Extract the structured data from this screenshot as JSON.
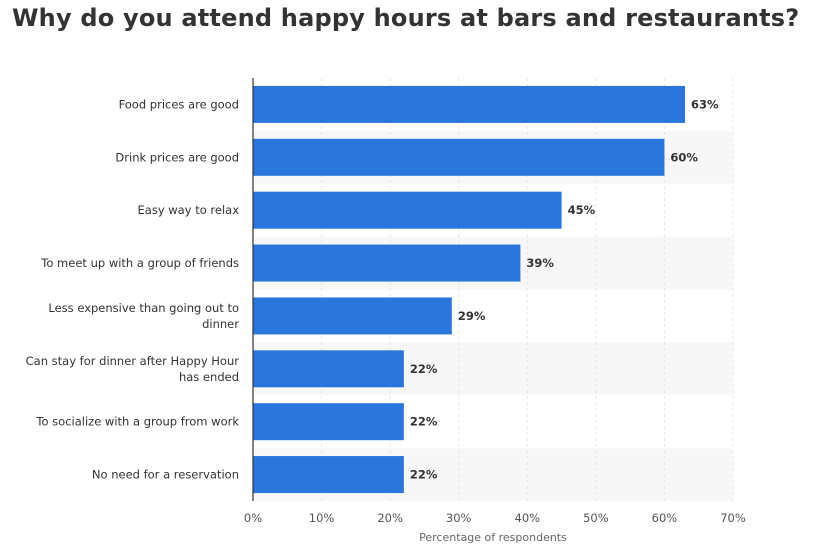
{
  "chart_data": {
    "type": "bar",
    "orientation": "horizontal",
    "title": "Why do you attend happy hours at bars and restaurants?",
    "categories": [
      [
        "Food prices are good"
      ],
      [
        "Drink prices are good"
      ],
      [
        "Easy way to relax"
      ],
      [
        "To meet up with a group of friends"
      ],
      [
        "Less expensive than going out to",
        "dinner"
      ],
      [
        "Can stay for dinner after Happy Hour",
        "has ended"
      ],
      [
        "To socialize with a group from work"
      ],
      [
        "No need for a reservation"
      ]
    ],
    "values": [
      63,
      60,
      45,
      39,
      29,
      22,
      22,
      22
    ],
    "value_labels": [
      "63%",
      "60%",
      "45%",
      "39%",
      "29%",
      "22%",
      "22%",
      "22%"
    ],
    "xlim": [
      0,
      70
    ],
    "xticks": [
      0,
      10,
      20,
      30,
      40,
      50,
      60,
      70
    ],
    "xtick_labels": [
      "0%",
      "10%",
      "20%",
      "30%",
      "40%",
      "50%",
      "60%",
      "70%"
    ],
    "xlabel": "Percentage of respondents",
    "ylabel": "",
    "grid": true,
    "colors": {
      "bar": "#2a76dd",
      "stripe": "#f7f7f7",
      "grid": "#e6e6e6",
      "axis": "#333333"
    }
  }
}
